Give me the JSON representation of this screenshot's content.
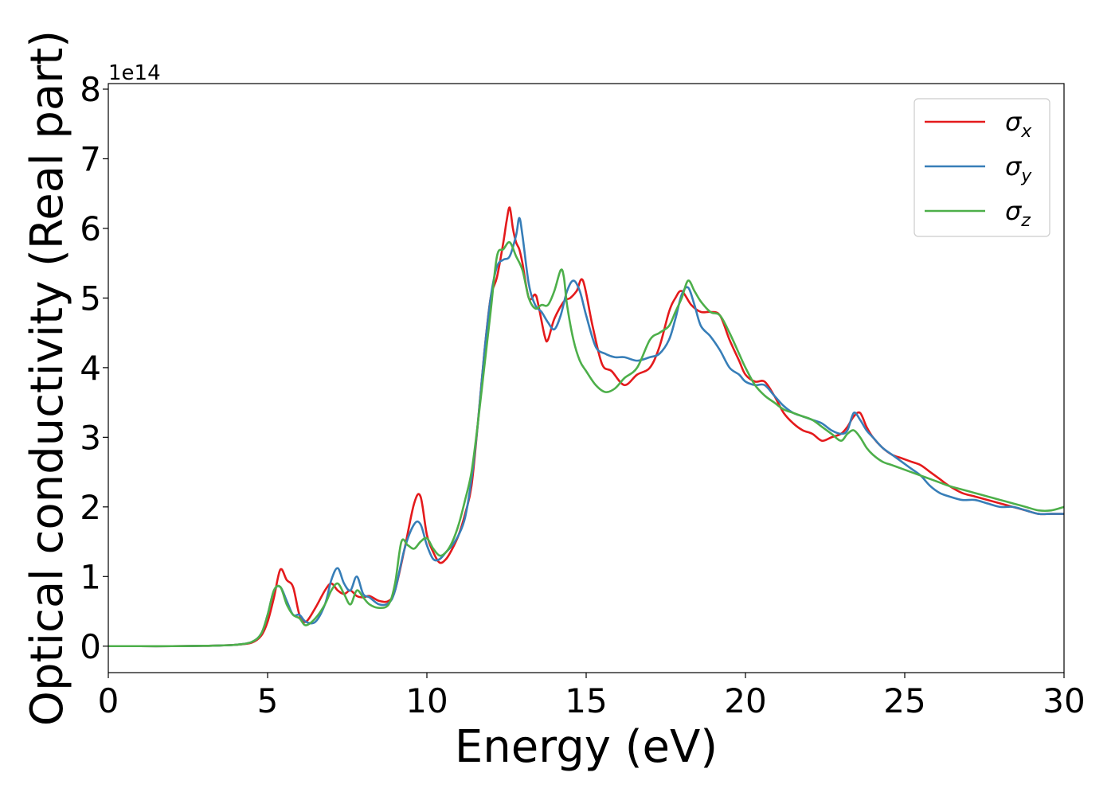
{
  "chart_data": {
    "type": "line",
    "title": "",
    "xlabel": "Energy (eV)",
    "ylabel": "Optical conductivity (Real part)",
    "y_offset_text": "1e14",
    "xlim": [
      0,
      30
    ],
    "ylim": [
      -0.38,
      8.08
    ],
    "x_ticks": [
      0,
      5,
      10,
      15,
      20,
      25,
      30
    ],
    "y_ticks": [
      0,
      1,
      2,
      3,
      4,
      5,
      6,
      7,
      8
    ],
    "grid": false,
    "legend_position": "top-right",
    "series": [
      {
        "name": "σx",
        "symbol": "σ",
        "subscript": "x",
        "color": "#e41a1c",
        "x": [
          0,
          1,
          2,
          3,
          3.5,
          4,
          4.5,
          4.8,
          5.0,
          5.2,
          5.4,
          5.6,
          5.8,
          6.0,
          6.2,
          6.5,
          6.8,
          7.0,
          7.2,
          7.4,
          7.6,
          7.8,
          8.0,
          8.2,
          8.5,
          8.8,
          9.0,
          9.3,
          9.6,
          9.8,
          10.0,
          10.2,
          10.4,
          10.6,
          10.8,
          11.0,
          11.2,
          11.4,
          11.6,
          11.8,
          12.0,
          12.2,
          12.4,
          12.5,
          12.6,
          12.7,
          12.8,
          12.9,
          13.0,
          13.2,
          13.4,
          13.5,
          13.7,
          13.8,
          14.0,
          14.3,
          14.5,
          14.7,
          14.9,
          15.2,
          15.5,
          15.8,
          16.2,
          16.6,
          17.0,
          17.3,
          17.6,
          17.8,
          18.0,
          18.3,
          18.6,
          18.9,
          19.2,
          19.5,
          19.8,
          20.0,
          20.3,
          20.6,
          20.9,
          21.2,
          21.5,
          21.8,
          22.1,
          22.4,
          22.7,
          23.0,
          23.2,
          23.4,
          23.6,
          23.8,
          24.0,
          24.3,
          24.6,
          24.9,
          25.2,
          25.5,
          25.8,
          26.1,
          26.4,
          26.8,
          27.2,
          27.6,
          28.0,
          28.4,
          28.8,
          29.2,
          29.6,
          30.0
        ],
        "y": [
          0.0,
          0.0,
          0.0,
          0.005,
          0.01,
          0.02,
          0.05,
          0.15,
          0.35,
          0.7,
          1.1,
          0.95,
          0.85,
          0.45,
          0.35,
          0.55,
          0.8,
          0.9,
          0.8,
          0.75,
          0.8,
          0.72,
          0.7,
          0.72,
          0.65,
          0.65,
          0.8,
          1.4,
          2.05,
          2.15,
          1.6,
          1.35,
          1.2,
          1.25,
          1.4,
          1.6,
          1.9,
          2.3,
          3.2,
          4.2,
          5.0,
          5.3,
          5.8,
          6.1,
          6.3,
          6.0,
          5.8,
          5.7,
          5.5,
          5.0,
          5.05,
          4.9,
          4.45,
          4.4,
          4.7,
          4.95,
          5.0,
          5.1,
          5.25,
          4.6,
          4.05,
          3.95,
          3.75,
          3.9,
          4.0,
          4.3,
          4.8,
          5.0,
          5.1,
          4.9,
          4.8,
          4.8,
          4.75,
          4.4,
          4.1,
          3.9,
          3.8,
          3.8,
          3.6,
          3.35,
          3.2,
          3.1,
          3.05,
          2.95,
          3.0,
          3.05,
          3.15,
          3.3,
          3.35,
          3.15,
          3.0,
          2.85,
          2.75,
          2.7,
          2.65,
          2.6,
          2.5,
          2.4,
          2.3,
          2.2,
          2.15,
          2.1,
          2.05,
          2.0,
          1.95,
          1.9,
          1.9,
          1.9
        ]
      },
      {
        "name": "σy",
        "symbol": "σ",
        "subscript": "y",
        "color": "#377eb8",
        "x": [
          0,
          1,
          2,
          3,
          3.5,
          4,
          4.5,
          4.8,
          5.0,
          5.2,
          5.4,
          5.6,
          5.8,
          6.0,
          6.2,
          6.5,
          6.8,
          7.0,
          7.2,
          7.4,
          7.6,
          7.8,
          8.0,
          8.2,
          8.5,
          8.8,
          9.0,
          9.3,
          9.6,
          9.8,
          10.0,
          10.2,
          10.4,
          10.6,
          10.8,
          11.0,
          11.2,
          11.4,
          11.6,
          11.8,
          12.0,
          12.2,
          12.4,
          12.6,
          12.8,
          12.9,
          13.0,
          13.2,
          13.4,
          13.6,
          13.8,
          14.0,
          14.2,
          14.4,
          14.6,
          14.8,
          15.0,
          15.3,
          15.6,
          15.9,
          16.2,
          16.6,
          17.0,
          17.3,
          17.6,
          17.8,
          18.0,
          18.2,
          18.4,
          18.6,
          18.9,
          19.2,
          19.5,
          19.8,
          20.0,
          20.3,
          20.6,
          20.9,
          21.2,
          21.5,
          21.8,
          22.1,
          22.4,
          22.7,
          23.0,
          23.2,
          23.4,
          23.6,
          23.8,
          24.0,
          24.3,
          24.6,
          24.9,
          25.2,
          25.5,
          25.8,
          26.1,
          26.4,
          26.8,
          27.2,
          27.6,
          28.0,
          28.4,
          28.8,
          29.2,
          29.6,
          30.0
        ],
        "y": [
          0.0,
          0.0,
          0.0,
          0.005,
          0.01,
          0.02,
          0.06,
          0.18,
          0.45,
          0.8,
          0.85,
          0.65,
          0.45,
          0.45,
          0.35,
          0.35,
          0.6,
          0.95,
          1.12,
          0.9,
          0.8,
          1.0,
          0.75,
          0.7,
          0.6,
          0.62,
          0.8,
          1.4,
          1.75,
          1.75,
          1.45,
          1.25,
          1.25,
          1.35,
          1.45,
          1.6,
          1.85,
          2.4,
          3.2,
          4.2,
          5.0,
          5.45,
          5.55,
          5.6,
          5.9,
          6.15,
          5.9,
          5.2,
          4.9,
          4.8,
          4.65,
          4.55,
          4.75,
          5.1,
          5.25,
          5.1,
          4.75,
          4.3,
          4.2,
          4.15,
          4.15,
          4.1,
          4.15,
          4.2,
          4.4,
          4.7,
          5.05,
          5.15,
          4.9,
          4.6,
          4.45,
          4.25,
          4.0,
          3.9,
          3.8,
          3.75,
          3.75,
          3.6,
          3.45,
          3.35,
          3.3,
          3.25,
          3.2,
          3.1,
          3.05,
          3.1,
          3.35,
          3.25,
          3.1,
          3.0,
          2.85,
          2.75,
          2.65,
          2.55,
          2.45,
          2.3,
          2.2,
          2.15,
          2.1,
          2.1,
          2.05,
          2.0,
          2.0,
          1.95,
          1.9,
          1.9,
          1.9
        ]
      },
      {
        "name": "σz",
        "symbol": "σ",
        "subscript": "z",
        "color": "#4daf4a",
        "x": [
          0,
          1,
          2,
          3,
          3.5,
          4,
          4.5,
          4.8,
          5.0,
          5.2,
          5.4,
          5.6,
          5.8,
          6.0,
          6.2,
          6.5,
          6.8,
          7.0,
          7.2,
          7.4,
          7.6,
          7.8,
          8.0,
          8.2,
          8.5,
          8.8,
          9.0,
          9.2,
          9.4,
          9.6,
          9.8,
          10.0,
          10.2,
          10.4,
          10.6,
          10.8,
          11.0,
          11.2,
          11.4,
          11.6,
          11.8,
          12.0,
          12.2,
          12.4,
          12.6,
          12.8,
          13.0,
          13.2,
          13.4,
          13.6,
          13.8,
          14.0,
          14.2,
          14.3,
          14.4,
          14.6,
          14.8,
          15.0,
          15.3,
          15.6,
          15.9,
          16.2,
          16.6,
          17.0,
          17.3,
          17.6,
          17.8,
          18.0,
          18.2,
          18.4,
          18.6,
          18.9,
          19.2,
          19.5,
          19.8,
          20.0,
          20.3,
          20.6,
          20.9,
          21.2,
          21.5,
          21.8,
          22.1,
          22.4,
          22.7,
          23.0,
          23.2,
          23.4,
          23.6,
          23.8,
          24.0,
          24.3,
          24.6,
          24.9,
          25.2,
          25.5,
          25.8,
          26.1,
          26.4,
          26.8,
          27.2,
          27.6,
          28.0,
          28.4,
          28.8,
          29.2,
          29.6,
          30.0
        ],
        "y": [
          0.0,
          0.0,
          0.0,
          0.005,
          0.01,
          0.02,
          0.06,
          0.18,
          0.45,
          0.8,
          0.85,
          0.6,
          0.45,
          0.4,
          0.3,
          0.4,
          0.6,
          0.8,
          0.9,
          0.75,
          0.6,
          0.8,
          0.7,
          0.6,
          0.55,
          0.6,
          0.9,
          1.5,
          1.45,
          1.4,
          1.5,
          1.55,
          1.4,
          1.3,
          1.35,
          1.5,
          1.75,
          2.1,
          2.5,
          3.2,
          4.0,
          4.8,
          5.6,
          5.7,
          5.8,
          5.6,
          5.4,
          5.0,
          4.85,
          4.9,
          4.9,
          5.1,
          5.4,
          5.3,
          4.9,
          4.4,
          4.1,
          3.95,
          3.75,
          3.65,
          3.7,
          3.85,
          4.0,
          4.4,
          4.5,
          4.6,
          4.8,
          5.0,
          5.25,
          5.1,
          4.95,
          4.8,
          4.75,
          4.5,
          4.2,
          4.0,
          3.75,
          3.6,
          3.5,
          3.4,
          3.35,
          3.3,
          3.25,
          3.15,
          3.05,
          2.95,
          3.05,
          3.1,
          3.0,
          2.85,
          2.75,
          2.65,
          2.6,
          2.55,
          2.5,
          2.45,
          2.4,
          2.35,
          2.3,
          2.25,
          2.2,
          2.15,
          2.1,
          2.05,
          2.0,
          1.95,
          1.95,
          2.0
        ]
      }
    ]
  }
}
